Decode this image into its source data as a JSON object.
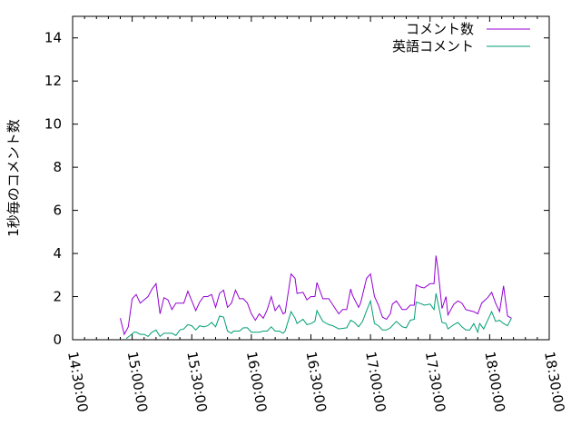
{
  "chart_data": {
    "type": "line",
    "title": "",
    "xlabel": "",
    "ylabel": "1秒毎のコメント数",
    "xlim": [
      "14:30:00",
      "18:30:00"
    ],
    "ylim": [
      0,
      15
    ],
    "x_ticks": [
      "14:30:00",
      "15:00:00",
      "15:30:00",
      "16:00:00",
      "16:30:00",
      "17:00:00",
      "17:30:00",
      "18:00:00",
      "18:30:00"
    ],
    "y_ticks": [
      0,
      2,
      4,
      6,
      8,
      10,
      12,
      14
    ],
    "grid": false,
    "legend_position": "top-right",
    "series": [
      {
        "name": "コメント数",
        "color": "#9400d3",
        "x": [
          "14:54",
          "14:56",
          "14:58",
          "15:00",
          "15:02",
          "15:04",
          "15:08",
          "15:10",
          "15:12",
          "15:14",
          "15:16",
          "15:18",
          "15:20",
          "15:22",
          "15:24",
          "15:26",
          "15:28",
          "15:30",
          "15:32",
          "15:34",
          "15:36",
          "15:38",
          "15:40",
          "15:42",
          "15:44",
          "15:46",
          "15:48",
          "15:50",
          "15:52",
          "15:54",
          "15:56",
          "15:58",
          "16:00",
          "16:02",
          "16:04",
          "16:06",
          "16:08",
          "16:10",
          "16:12",
          "16:14",
          "16:16",
          "16:17",
          "16:20",
          "16:22",
          "16:23",
          "16:26",
          "16:28",
          "16:30",
          "16:32",
          "16:33",
          "16:36",
          "16:39",
          "16:44",
          "16:46",
          "16:48",
          "16:50",
          "16:51",
          "16:54",
          "16:55",
          "16:58",
          "17:00",
          "17:02",
          "17:04",
          "17:06",
          "17:08",
          "17:10",
          "17:11",
          "17:13",
          "17:16",
          "17:18",
          "17:20",
          "17:22",
          "17:23",
          "17:25",
          "17:27",
          "17:30",
          "17:32",
          "17:33",
          "17:34",
          "17:36",
          "17:38",
          "17:39",
          "17:42",
          "17:44",
          "17:46",
          "17:48",
          "17:50",
          "17:52",
          "17:54",
          "17:56",
          "17:59",
          "18:01",
          "18:03",
          "18:05",
          "18:07",
          "18:09",
          "18:11"
        ],
        "y": [
          1.0,
          0.25,
          0.6,
          1.9,
          2.1,
          1.7,
          2.0,
          2.35,
          2.6,
          1.2,
          1.95,
          1.85,
          1.4,
          1.7,
          1.7,
          1.7,
          2.25,
          1.8,
          1.35,
          1.75,
          2.0,
          2.0,
          2.1,
          1.5,
          2.15,
          2.3,
          1.5,
          1.7,
          2.3,
          1.9,
          1.9,
          1.7,
          1.2,
          0.9,
          1.2,
          1.0,
          1.4,
          2.0,
          1.35,
          1.6,
          1.2,
          1.25,
          3.05,
          2.85,
          2.15,
          2.2,
          1.85,
          2.0,
          2.0,
          2.65,
          1.9,
          1.9,
          1.2,
          1.4,
          1.4,
          2.35,
          2.05,
          1.5,
          1.7,
          2.85,
          3.05,
          2.0,
          1.6,
          1.05,
          0.95,
          1.2,
          1.65,
          1.8,
          1.4,
          1.4,
          1.6,
          1.6,
          2.55,
          2.45,
          2.4,
          2.6,
          2.6,
          3.9,
          3.25,
          1.45,
          2.0,
          1.15,
          1.65,
          1.8,
          1.7,
          1.4,
          1.35,
          1.3,
          1.2,
          1.7,
          1.95,
          2.2,
          1.7,
          1.3,
          2.5,
          1.1,
          1.0
        ]
      },
      {
        "name": "英語コメント",
        "color": "#009e73",
        "x": [
          "14:57",
          "15:01",
          "15:02",
          "15:04",
          "15:06",
          "15:08",
          "15:10",
          "15:12",
          "15:14",
          "15:16",
          "15:20",
          "15:22",
          "15:24",
          "15:26",
          "15:28",
          "15:30",
          "15:32",
          "15:34",
          "15:36",
          "15:38",
          "15:40",
          "15:42",
          "15:44",
          "15:46",
          "15:48",
          "15:50",
          "15:51",
          "15:54",
          "15:56",
          "15:58",
          "16:00",
          "16:02",
          "16:04",
          "16:06",
          "16:08",
          "16:10",
          "16:12",
          "16:14",
          "16:16",
          "16:17",
          "16:20",
          "16:22",
          "16:23",
          "16:26",
          "16:28",
          "16:30",
          "16:32",
          "16:33",
          "16:36",
          "16:39",
          "16:41",
          "16:44",
          "16:48",
          "16:50",
          "16:52",
          "16:54",
          "16:56",
          "16:58",
          "17:00",
          "17:02",
          "17:04",
          "17:06",
          "17:08",
          "17:10",
          "17:13",
          "17:16",
          "17:18",
          "17:20",
          "17:22",
          "17:23",
          "17:26",
          "17:27",
          "17:30",
          "17:32",
          "17:33",
          "17:36",
          "17:38",
          "17:39",
          "17:42",
          "17:44",
          "17:46",
          "17:48",
          "17:50",
          "17:52",
          "17:54",
          "17:55",
          "17:57",
          "18:01",
          "18:03",
          "18:05",
          "18:07",
          "18:09",
          "18:11"
        ],
        "y": [
          0.05,
          0.35,
          0.35,
          0.25,
          0.25,
          0.15,
          0.35,
          0.45,
          0.15,
          0.3,
          0.3,
          0.2,
          0.45,
          0.5,
          0.7,
          0.65,
          0.45,
          0.65,
          0.6,
          0.65,
          0.8,
          0.6,
          1.1,
          1.05,
          0.4,
          0.3,
          0.4,
          0.4,
          0.55,
          0.55,
          0.35,
          0.35,
          0.35,
          0.4,
          0.4,
          0.6,
          0.4,
          0.4,
          0.3,
          0.4,
          1.3,
          1.0,
          0.75,
          0.95,
          0.7,
          0.75,
          0.85,
          1.35,
          0.85,
          0.7,
          0.65,
          0.5,
          0.55,
          0.9,
          0.8,
          0.6,
          0.85,
          1.35,
          1.8,
          0.75,
          0.65,
          0.45,
          0.45,
          0.55,
          0.85,
          0.6,
          0.55,
          0.9,
          0.95,
          1.75,
          1.65,
          1.6,
          1.65,
          1.4,
          2.15,
          0.8,
          0.75,
          0.5,
          0.7,
          0.8,
          0.6,
          0.45,
          0.45,
          0.75,
          0.35,
          0.75,
          0.5,
          1.3,
          0.85,
          0.9,
          0.75,
          0.65,
          1.0
        ]
      }
    ]
  }
}
